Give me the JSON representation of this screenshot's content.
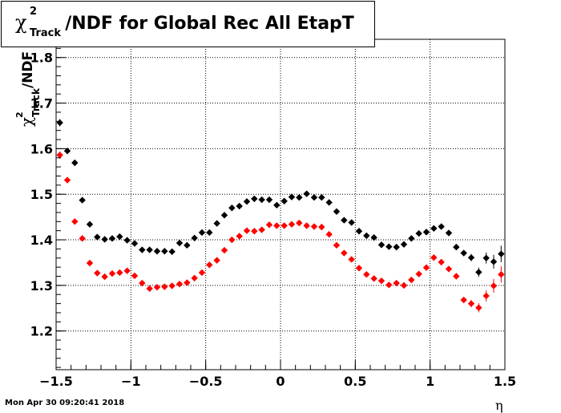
{
  "title": {
    "symbol": "χ",
    "superscript": "2",
    "subscript": "Track",
    "text": "/NDF for Global Rec All EtapT"
  },
  "timestamp": "Mon Apr 30 09:20:41 2018",
  "colors": {
    "series1": "#000000",
    "series2": "#ff0000",
    "grid": "#000000"
  },
  "chart_data": {
    "type": "scatter",
    "title": "χ²_Track/NDF for Global Rec All EtapT",
    "xlabel": "η",
    "ylabel": "χ²_Track/NDF",
    "xlim": [
      -1.5,
      1.5
    ],
    "ylim": [
      1.115,
      1.84
    ],
    "xticks": [
      -1.5,
      -1,
      -0.5,
      0,
      0.5,
      1,
      1.5
    ],
    "xtick_labels": [
      "−1.5",
      "−1",
      "−0.5",
      "0",
      "0.5",
      "1",
      "1.5"
    ],
    "yticks": [
      1.2,
      1.3,
      1.4,
      1.5,
      1.6,
      1.7,
      1.8
    ],
    "ytick_labels": [
      "1.2",
      "1.3",
      "1.4",
      "1.5",
      "1.6",
      "1.7",
      "1.8"
    ],
    "grid": true,
    "x": [
      -1.475,
      -1.425,
      -1.375,
      -1.325,
      -1.275,
      -1.225,
      -1.175,
      -1.125,
      -1.075,
      -1.025,
      -0.975,
      -0.925,
      -0.875,
      -0.825,
      -0.775,
      -0.725,
      -0.675,
      -0.625,
      -0.575,
      -0.525,
      -0.475,
      -0.425,
      -0.375,
      -0.325,
      -0.275,
      -0.225,
      -0.175,
      -0.125,
      -0.075,
      -0.025,
      0.025,
      0.075,
      0.125,
      0.175,
      0.225,
      0.275,
      0.325,
      0.375,
      0.425,
      0.475,
      0.525,
      0.575,
      0.625,
      0.675,
      0.725,
      0.775,
      0.825,
      0.875,
      0.925,
      0.975,
      1.025,
      1.075,
      1.125,
      1.175,
      1.225,
      1.275,
      1.325,
      1.375,
      1.425,
      1.475
    ],
    "series": [
      {
        "color": "#000000",
        "values": [
          1.657,
          1.595,
          1.569,
          1.487,
          1.434,
          1.406,
          1.401,
          1.403,
          1.407,
          1.399,
          1.392,
          1.378,
          1.378,
          1.375,
          1.375,
          1.374,
          1.393,
          1.388,
          1.404,
          1.416,
          1.416,
          1.436,
          1.454,
          1.47,
          1.474,
          1.484,
          1.49,
          1.488,
          1.488,
          1.476,
          1.485,
          1.494,
          1.493,
          1.501,
          1.493,
          1.493,
          1.482,
          1.462,
          1.443,
          1.438,
          1.419,
          1.409,
          1.405,
          1.389,
          1.385,
          1.384,
          1.39,
          1.403,
          1.414,
          1.417,
          1.425,
          1.429,
          1.415,
          1.384,
          1.371,
          1.361,
          1.329,
          1.36,
          1.352,
          1.369
        ],
        "errors": [
          0.008,
          0.006,
          0.006,
          0.005,
          0.004,
          0.004,
          0.004,
          0.004,
          0.004,
          0.004,
          0.004,
          0.004,
          0.004,
          0.004,
          0.004,
          0.004,
          0.004,
          0.004,
          0.004,
          0.004,
          0.004,
          0.004,
          0.004,
          0.004,
          0.004,
          0.004,
          0.004,
          0.004,
          0.004,
          0.004,
          0.004,
          0.004,
          0.004,
          0.004,
          0.004,
          0.004,
          0.004,
          0.004,
          0.004,
          0.004,
          0.004,
          0.004,
          0.004,
          0.004,
          0.004,
          0.004,
          0.004,
          0.004,
          0.004,
          0.004,
          0.004,
          0.004,
          0.004,
          0.005,
          0.006,
          0.008,
          0.01,
          0.012,
          0.015,
          0.018
        ]
      },
      {
        "color": "#ff0000",
        "values": [
          1.586,
          1.531,
          1.44,
          1.403,
          1.349,
          1.327,
          1.319,
          1.326,
          1.328,
          1.332,
          1.321,
          1.305,
          1.293,
          1.296,
          1.297,
          1.299,
          1.303,
          1.306,
          1.316,
          1.328,
          1.345,
          1.355,
          1.377,
          1.4,
          1.408,
          1.42,
          1.419,
          1.422,
          1.433,
          1.431,
          1.431,
          1.434,
          1.437,
          1.431,
          1.429,
          1.428,
          1.412,
          1.388,
          1.371,
          1.357,
          1.338,
          1.324,
          1.315,
          1.31,
          1.301,
          1.305,
          1.3,
          1.312,
          1.325,
          1.339,
          1.361,
          1.351,
          1.336,
          1.32,
          1.268,
          1.26,
          1.251,
          1.277,
          1.299,
          1.324
        ],
        "errors": [
          0.008,
          0.006,
          0.006,
          0.005,
          0.004,
          0.004,
          0.004,
          0.004,
          0.004,
          0.004,
          0.004,
          0.004,
          0.004,
          0.004,
          0.004,
          0.004,
          0.004,
          0.004,
          0.004,
          0.004,
          0.004,
          0.004,
          0.004,
          0.004,
          0.004,
          0.004,
          0.004,
          0.004,
          0.004,
          0.004,
          0.004,
          0.004,
          0.004,
          0.004,
          0.004,
          0.004,
          0.004,
          0.004,
          0.004,
          0.004,
          0.004,
          0.004,
          0.004,
          0.004,
          0.004,
          0.004,
          0.004,
          0.004,
          0.004,
          0.004,
          0.004,
          0.004,
          0.004,
          0.005,
          0.006,
          0.008,
          0.01,
          0.012,
          0.015,
          0.018
        ]
      }
    ]
  }
}
